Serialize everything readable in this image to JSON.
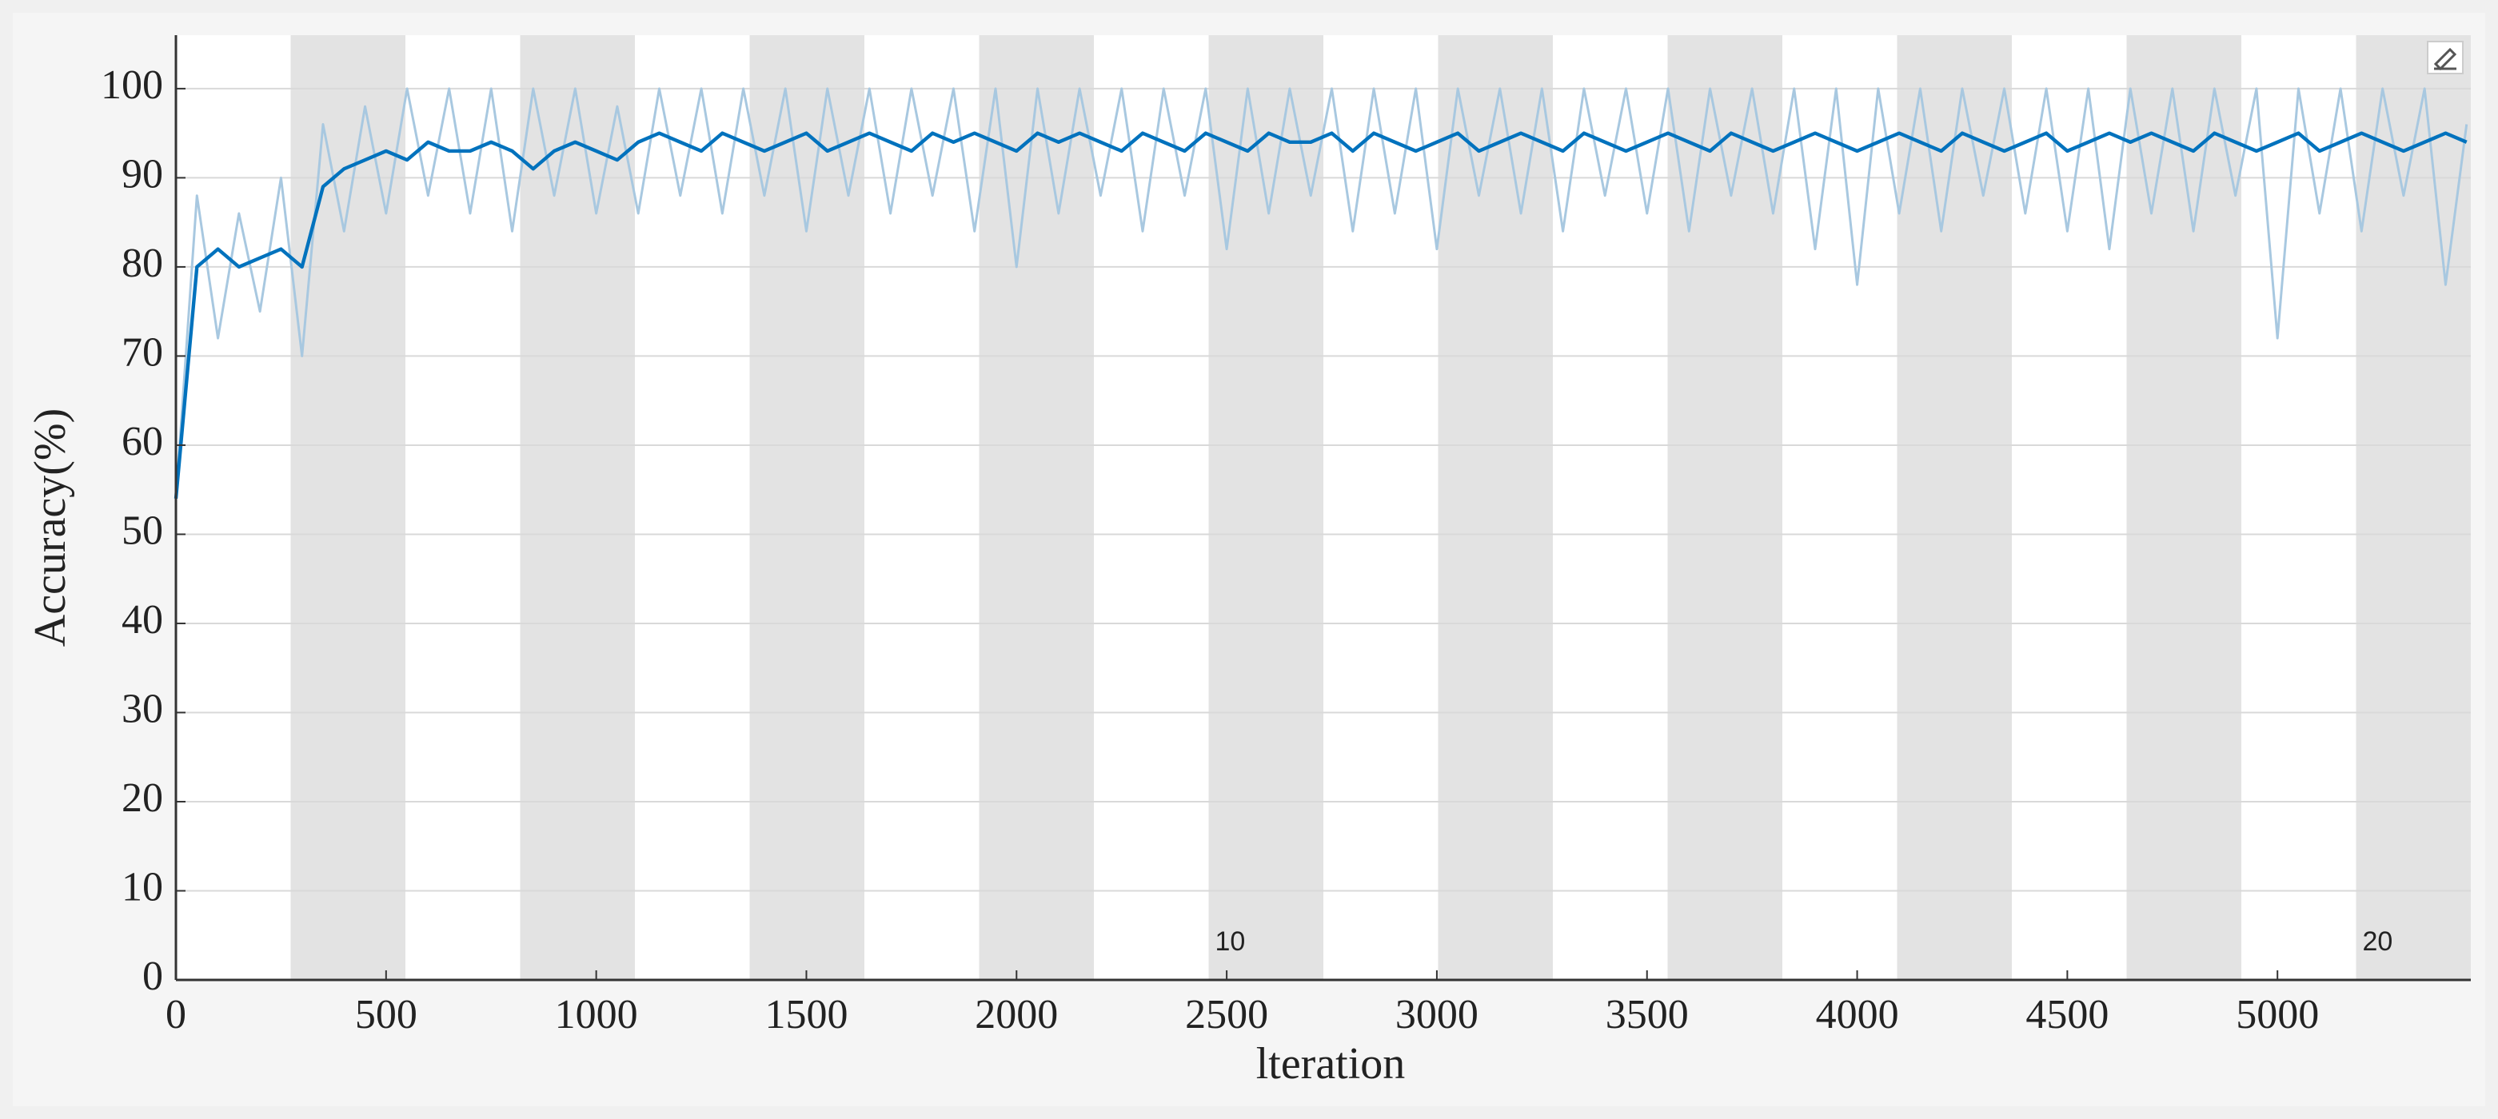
{
  "chart_data": {
    "type": "line",
    "x_label": "lteration",
    "y_label": "Accuracy(%)",
    "xlim": [
      0,
      5460
    ],
    "ylim": [
      0,
      106
    ],
    "xticks": [
      0,
      500,
      1000,
      1500,
      2000,
      2500,
      3000,
      3500,
      4000,
      4500,
      5000
    ],
    "yticks": [
      0,
      10,
      20,
      30,
      40,
      50,
      60,
      70,
      80,
      90,
      100
    ],
    "grid": true,
    "epoch_edges": [
      0,
      273,
      546,
      819,
      1092,
      1365,
      1638,
      1911,
      2184,
      2457,
      2730,
      3003,
      3276,
      3549,
      3822,
      4095,
      4368,
      4641,
      4914,
      5187,
      5460
    ],
    "epoch_ticks": [
      {
        "value": 2457,
        "label": "10"
      },
      {
        "value": 5187,
        "label": "20"
      }
    ],
    "x": [
      0,
      50,
      100,
      150,
      200,
      250,
      300,
      350,
      400,
      450,
      500,
      550,
      600,
      650,
      700,
      750,
      800,
      850,
      900,
      950,
      1000,
      1050,
      1100,
      1150,
      1200,
      1250,
      1300,
      1350,
      1400,
      1450,
      1500,
      1550,
      1600,
      1650,
      1700,
      1750,
      1800,
      1850,
      1900,
      1950,
      2000,
      2050,
      2100,
      2150,
      2200,
      2250,
      2300,
      2350,
      2400,
      2450,
      2500,
      2550,
      2600,
      2650,
      2700,
      2750,
      2800,
      2850,
      2900,
      2950,
      3000,
      3050,
      3100,
      3150,
      3200,
      3250,
      3300,
      3350,
      3400,
      3450,
      3500,
      3550,
      3600,
      3650,
      3700,
      3750,
      3800,
      3850,
      3900,
      3950,
      4000,
      4050,
      4100,
      4150,
      4200,
      4250,
      4300,
      4350,
      4400,
      4450,
      4500,
      4550,
      4600,
      4650,
      4700,
      4750,
      4800,
      4850,
      4900,
      4950,
      5000,
      5050,
      5100,
      5150,
      5200,
      5250,
      5300,
      5350,
      5400,
      5450
    ],
    "series": [
      {
        "color": "#a8c8e0",
        "values": [
          54,
          88,
          72,
          86,
          75,
          90,
          70,
          96,
          84,
          98,
          86,
          100,
          88,
          100,
          86,
          100,
          84,
          100,
          88,
          100,
          86,
          98,
          86,
          100,
          88,
          100,
          86,
          100,
          88,
          100,
          84,
          100,
          88,
          100,
          86,
          100,
          88,
          100,
          84,
          100,
          80,
          100,
          86,
          100,
          88,
          100,
          84,
          100,
          88,
          100,
          82,
          100,
          86,
          100,
          88,
          100,
          84,
          100,
          86,
          100,
          82,
          100,
          88,
          100,
          86,
          100,
          84,
          100,
          88,
          100,
          86,
          100,
          84,
          100,
          88,
          100,
          86,
          100,
          82,
          100,
          78,
          100,
          86,
          100,
          84,
          100,
          88,
          100,
          86,
          100,
          84,
          100,
          82,
          100,
          86,
          100,
          84,
          100,
          88,
          100,
          72,
          100,
          86,
          100,
          84,
          100,
          88,
          100,
          78,
          96
        ]
      },
      {
        "color": "#0072bd",
        "values": [
          54,
          80,
          82,
          80,
          81,
          82,
          80,
          89,
          91,
          92,
          93,
          92,
          94,
          93,
          93,
          94,
          93,
          91,
          93,
          94,
          93,
          92,
          94,
          95,
          94,
          93,
          95,
          94,
          93,
          94,
          95,
          93,
          94,
          95,
          94,
          93,
          95,
          94,
          95,
          94,
          93,
          95,
          94,
          95,
          94,
          93,
          95,
          94,
          93,
          95,
          94,
          93,
          95,
          94,
          94,
          95,
          93,
          95,
          94,
          93,
          94,
          95,
          93,
          94,
          95,
          94,
          93,
          95,
          94,
          93,
          94,
          95,
          94,
          93,
          95,
          94,
          93,
          94,
          95,
          94,
          93,
          94,
          95,
          94,
          93,
          95,
          94,
          93,
          94,
          95,
          93,
          94,
          95,
          94,
          95,
          94,
          93,
          95,
          94,
          93,
          94,
          95,
          93,
          94,
          95,
          94,
          93,
          94,
          95,
          94
        ]
      }
    ]
  }
}
